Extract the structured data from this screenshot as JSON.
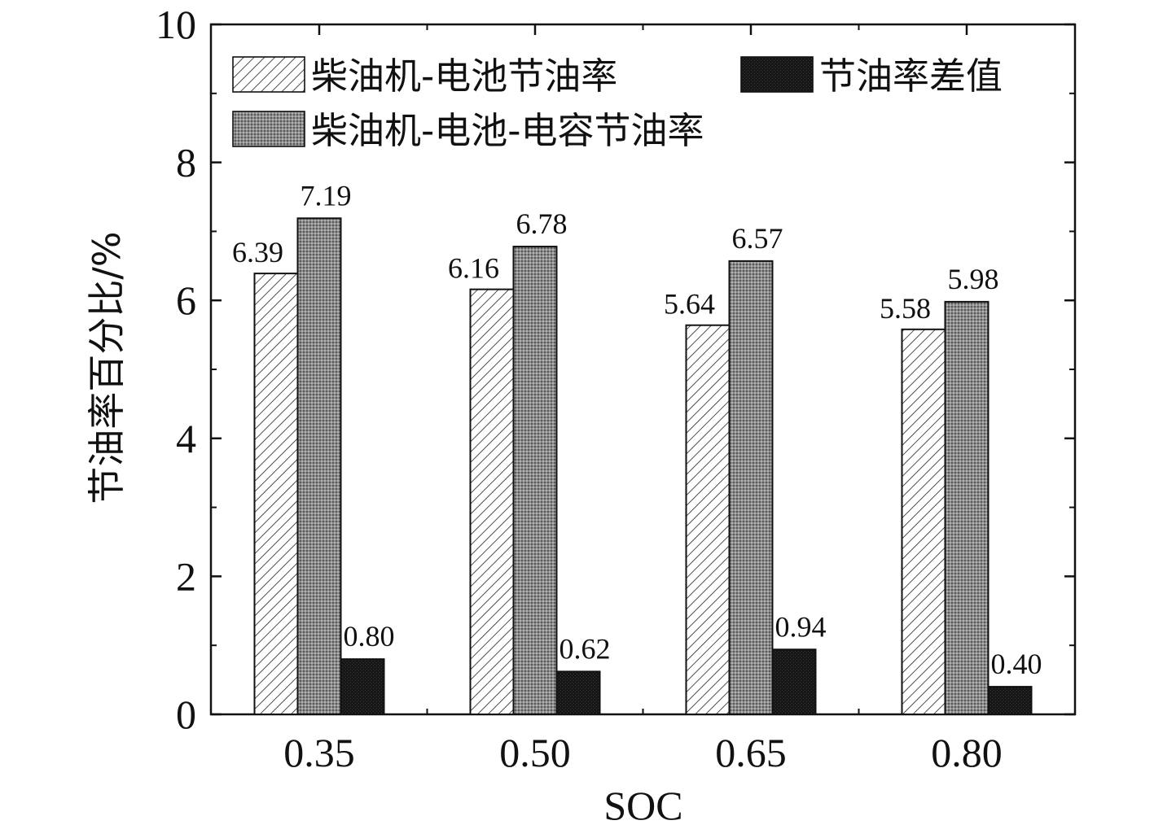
{
  "chart_data": {
    "type": "bar",
    "title": "",
    "xlabel": "SOC",
    "ylabel": "节油率百分比/%",
    "categories": [
      "0.35",
      "0.50",
      "0.65",
      "0.80"
    ],
    "series": [
      {
        "name": "柴油机-电池节油率",
        "values": [
          6.39,
          6.16,
          5.64,
          5.58
        ],
        "labels": [
          "6.39",
          "6.16",
          "5.64",
          "5.58"
        ],
        "pattern": "hatch"
      },
      {
        "name": "柴油机-电池-电容节油率",
        "values": [
          7.19,
          6.78,
          6.57,
          5.98
        ],
        "labels": [
          "7.19",
          "6.78",
          "6.57",
          "5.98"
        ],
        "pattern": "dots"
      },
      {
        "name": "节油率差值",
        "values": [
          0.8,
          0.62,
          0.94,
          0.4
        ],
        "labels": [
          "0.80",
          "0.62",
          "0.94",
          "0.40"
        ],
        "pattern": "solid"
      }
    ],
    "ylim": [
      0,
      10
    ],
    "yticks": [
      "0",
      "2",
      "4",
      "6",
      "8",
      "10"
    ],
    "grid": false,
    "legend_position": "top"
  }
}
